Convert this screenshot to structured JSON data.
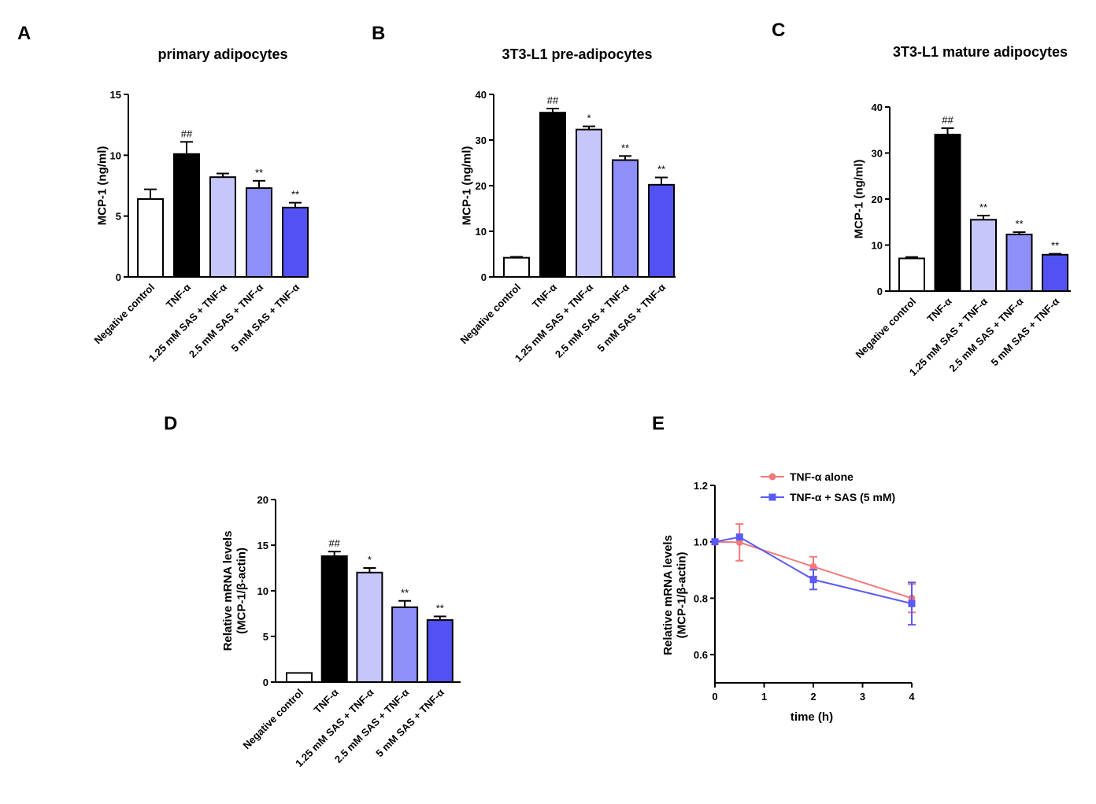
{
  "panel_letters": [
    "A",
    "B",
    "C",
    "D",
    "E"
  ],
  "colors": {
    "negative_control": "#ffffff",
    "tnf": "#000000",
    "sas_1_25": "#c6c6fb",
    "sas_2_5": "#8f8ff9",
    "sas_5": "#5252f4",
    "tnf_alone_line": "#f47a7a",
    "tnf_sas_line": "#5a5af5"
  },
  "chart_data": [
    {
      "id": "A",
      "type": "bar",
      "title": "primary adipocytes",
      "ylabel": "MCP-1 (ng/ml)",
      "xlabel": "",
      "ylim": [
        0,
        15
      ],
      "yticks": [
        0,
        5,
        10,
        15
      ],
      "categories": [
        "Negative control",
        "TNF-α",
        "1.25 mM SAS + TNF-α",
        "2.5 mM SAS + TNF-α",
        "5 mM SAS + TNF-α"
      ],
      "values": [
        6.4,
        10.1,
        8.2,
        7.3,
        5.7
      ],
      "errors": [
        0.8,
        1.0,
        0.3,
        0.6,
        0.4
      ],
      "annotations": [
        "",
        "##",
        "",
        "**",
        "**"
      ]
    },
    {
      "id": "B",
      "type": "bar",
      "title": "3T3-L1 pre-adipocytes",
      "ylabel": "MCP-1 (ng/ml)",
      "xlabel": "",
      "ylim": [
        0,
        40
      ],
      "yticks": [
        0,
        10,
        20,
        30,
        40
      ],
      "categories": [
        "Negative control",
        "TNF-α",
        "1.25 mM SAS + TNF-α",
        "2.5 mM SAS + TNF-α",
        "5 mM SAS + TNF-α"
      ],
      "values": [
        4.2,
        36.0,
        32.3,
        25.6,
        20.2
      ],
      "errors": [
        0.2,
        0.9,
        0.7,
        0.9,
        1.6
      ],
      "annotations": [
        "",
        "##",
        "*",
        "**",
        "**"
      ]
    },
    {
      "id": "C",
      "type": "bar",
      "title": "3T3-L1 mature adipocytes",
      "ylabel": "MCP-1 (ng/ml)",
      "xlabel": "",
      "ylim": [
        0,
        40
      ],
      "yticks": [
        0,
        10,
        20,
        30,
        40
      ],
      "categories": [
        "Negative control",
        "TNF-α",
        "1.25 mM SAS + TNF-α",
        "2.5 mM SAS + TNF-α",
        "5 mM SAS + TNF-α"
      ],
      "values": [
        7.1,
        34.0,
        15.5,
        12.3,
        7.9
      ],
      "errors": [
        0.3,
        1.4,
        0.9,
        0.5,
        0.2
      ],
      "annotations": [
        "",
        "##",
        "**",
        "**",
        "**"
      ]
    },
    {
      "id": "D",
      "type": "bar",
      "title": "",
      "ylabel": "Relative mRNA levels\n(MCP-1/β-actin)",
      "xlabel": "",
      "ylim": [
        0,
        20
      ],
      "yticks": [
        0,
        5,
        10,
        15,
        20
      ],
      "categories": [
        "Negative control",
        "TNF-α",
        "1.25 mM SAS + TNF-α",
        "2.5 mM SAS + TNF-α",
        "5 mM SAS + TNF-α"
      ],
      "values": [
        1.0,
        13.8,
        12.0,
        8.2,
        6.8
      ],
      "errors": [
        0.0,
        0.5,
        0.5,
        0.7,
        0.4
      ],
      "annotations": [
        "",
        "##",
        "*",
        "**",
        "**"
      ]
    },
    {
      "id": "E",
      "type": "line",
      "title": "",
      "ylabel": "Relative mRNA levels\n(MCP-1/β-actin)",
      "xlabel": "time (h)",
      "xlim": [
        0,
        4
      ],
      "ylim": [
        0.5,
        1.2
      ],
      "xticks": [
        0,
        1,
        2,
        3,
        4
      ],
      "yticks": [
        0.6,
        0.8,
        1.0,
        1.2
      ],
      "x": [
        0,
        0.5,
        2,
        4
      ],
      "series": [
        {
          "name": "TNF-α alone",
          "values": [
            1.0,
            0.998,
            0.912,
            0.8
          ],
          "errors": [
            0.0,
            0.065,
            0.035,
            0.05
          ]
        },
        {
          "name": "TNF-α + SAS (5 mM)",
          "values": [
            1.0,
            1.017,
            0.866,
            0.781
          ],
          "errors": [
            0.0,
            0.0,
            0.035,
            0.075
          ]
        }
      ],
      "legend": "top-right"
    }
  ]
}
